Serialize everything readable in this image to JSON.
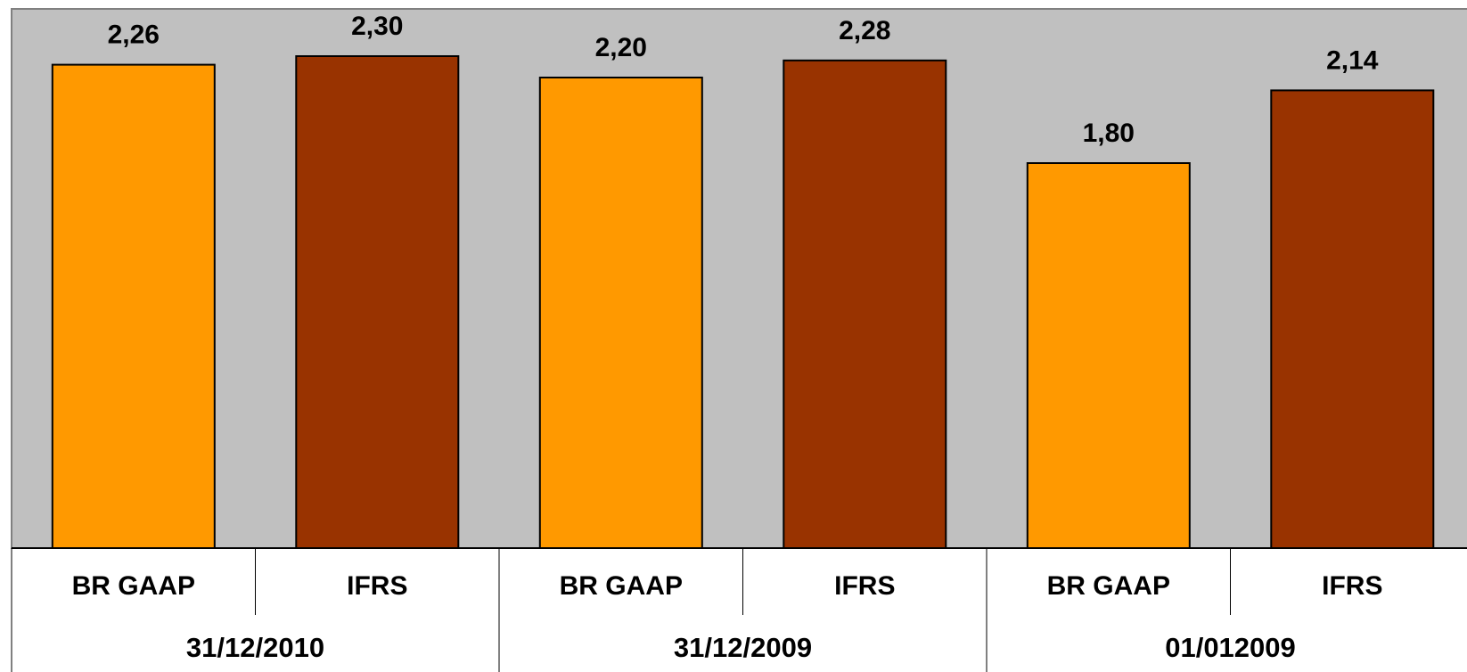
{
  "chart_data": {
    "type": "bar",
    "groups": [
      {
        "label": "31/12/2010",
        "bars": [
          {
            "label": "BR GAAP",
            "value": 2.26,
            "display": "2,26"
          },
          {
            "label": "IFRS",
            "value": 2.3,
            "display": "2,30"
          }
        ]
      },
      {
        "label": "31/12/2009",
        "bars": [
          {
            "label": "BR GAAP",
            "value": 2.2,
            "display": "2,20"
          },
          {
            "label": "IFRS",
            "value": 2.28,
            "display": "2,28"
          }
        ]
      },
      {
        "label": "01/012009",
        "bars": [
          {
            "label": "BR GAAP",
            "value": 1.8,
            "display": "1,80"
          },
          {
            "label": "IFRS",
            "value": 2.14,
            "display": "2,14"
          }
        ]
      }
    ],
    "ylim": [
      0,
      2.5
    ],
    "grid": false,
    "colors": {
      "BR GAAP": "#FF9900",
      "IFRS": "#993300",
      "plot_background": "#C0C0C0"
    }
  }
}
